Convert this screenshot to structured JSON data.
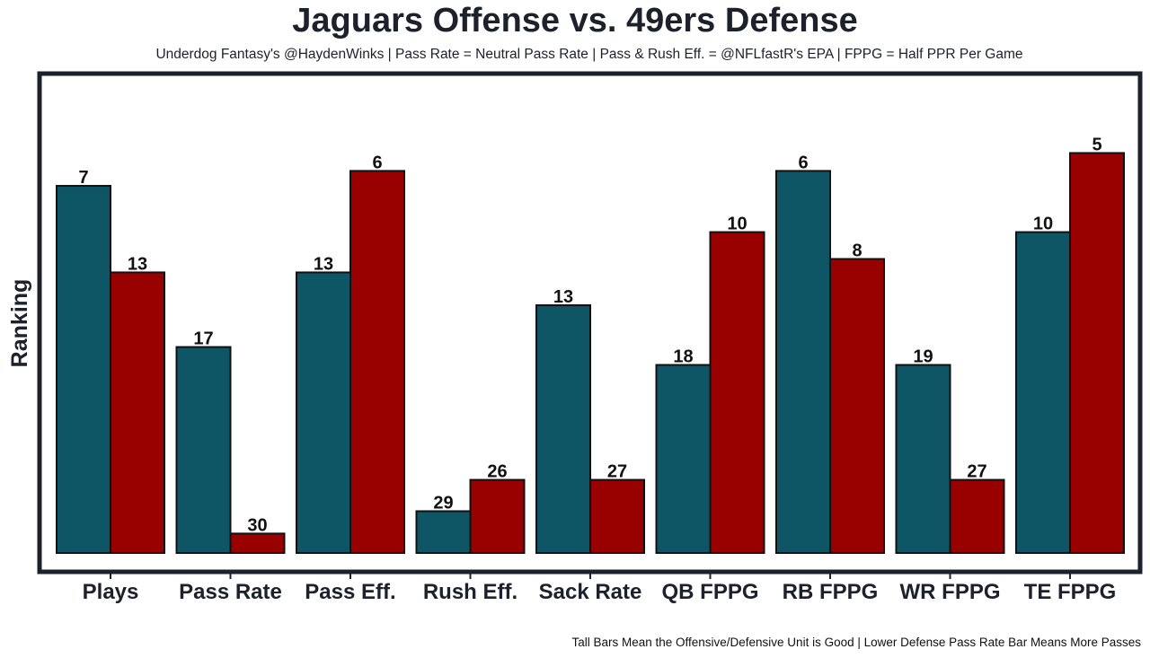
{
  "chart_data": {
    "type": "bar",
    "title": "Jaguars Offense vs. 49ers Defense",
    "subtitle": "Underdog Fantasy's @HaydenWinks | Pass Rate = Neutral Pass Rate | Pass & Rush Eff. = @NFLfastR's EPA | FPPG = Half PPR Per Game",
    "footer": "Tall Bars Mean the Offensive/Defensive Unit is Good | Lower Defense Pass Rate Bar Means More Passes",
    "xlabel": "",
    "ylabel": "Ranking",
    "ylim": [
      0,
      32
    ],
    "grid": false,
    "categories": [
      "Plays",
      "Pass Rate",
      "Pass Eff.",
      "Rush Eff.",
      "Sack Rate",
      "QB FPPG",
      "RB FPPG",
      "WR FPPG",
      "TE FPPG"
    ],
    "series": [
      {
        "name": "Jaguars Offense",
        "color": "#0e5566",
        "labels": [
          "7",
          "17",
          "13",
          "29",
          "13",
          "18",
          "6",
          "19",
          "10"
        ],
        "values": [
          24.6,
          13.8,
          18.8,
          2.8,
          16.6,
          12.6,
          25.6,
          12.6,
          21.5
        ]
      },
      {
        "name": "49ers Defense",
        "color": "#990000",
        "labels": [
          "13",
          "30",
          "6",
          "26",
          "27",
          "10",
          "8",
          "27",
          "5"
        ],
        "values": [
          18.8,
          1.3,
          25.6,
          4.9,
          4.9,
          21.5,
          19.7,
          4.9,
          26.8
        ]
      }
    ]
  }
}
